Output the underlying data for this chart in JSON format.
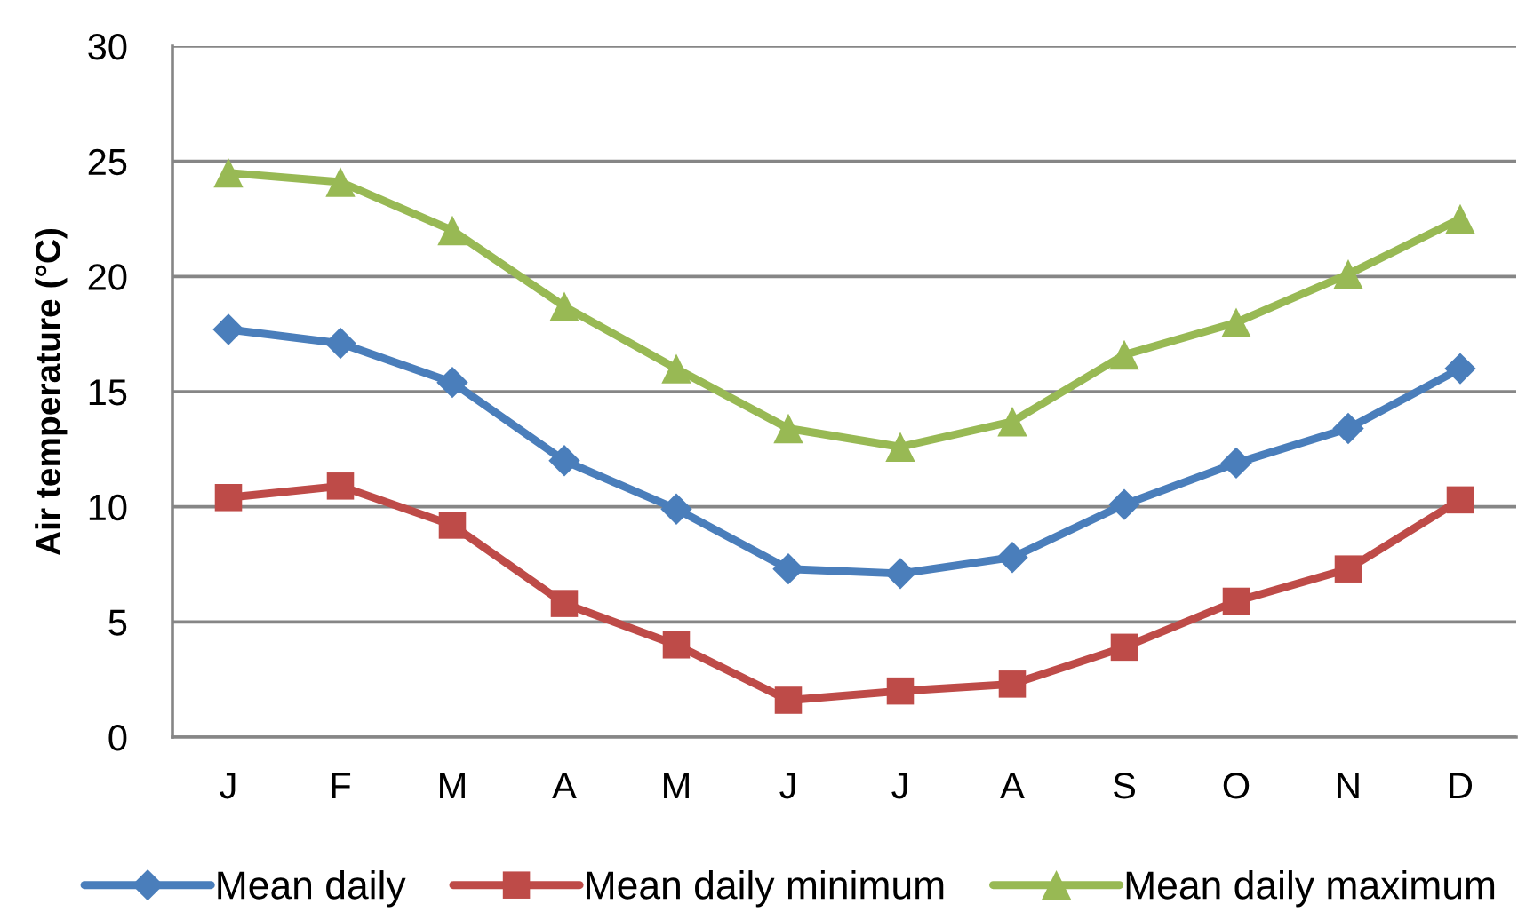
{
  "chart_data": {
    "type": "line",
    "ylabel": "Air temperature (°C)",
    "categories": [
      "J",
      "F",
      "M",
      "A",
      "M",
      "J",
      "J",
      "A",
      "S",
      "O",
      "N",
      "D"
    ],
    "series": [
      {
        "name": "Mean daily",
        "color": "#4a7ebb",
        "marker": "diamond",
        "values": [
          17.7,
          17.1,
          15.4,
          12.0,
          9.9,
          7.3,
          7.1,
          7.8,
          10.1,
          11.9,
          13.4,
          16.0
        ]
      },
      {
        "name": "Mean daily minimum",
        "color": "#be4b48",
        "marker": "square",
        "values": [
          10.4,
          10.9,
          9.2,
          5.8,
          4.0,
          1.6,
          2.0,
          2.3,
          3.9,
          5.9,
          7.3,
          10.3
        ]
      },
      {
        "name": "Mean daily maximum",
        "color": "#98b954",
        "marker": "triangle",
        "values": [
          24.5,
          24.1,
          22.0,
          18.7,
          16.0,
          13.4,
          12.6,
          13.7,
          16.6,
          18.0,
          20.1,
          22.5
        ]
      }
    ],
    "ylim": [
      0,
      30
    ],
    "yticks": [
      0,
      5,
      10,
      15,
      20,
      25,
      30
    ],
    "grid": "y",
    "legend": "bottom",
    "line_style": "solid"
  }
}
